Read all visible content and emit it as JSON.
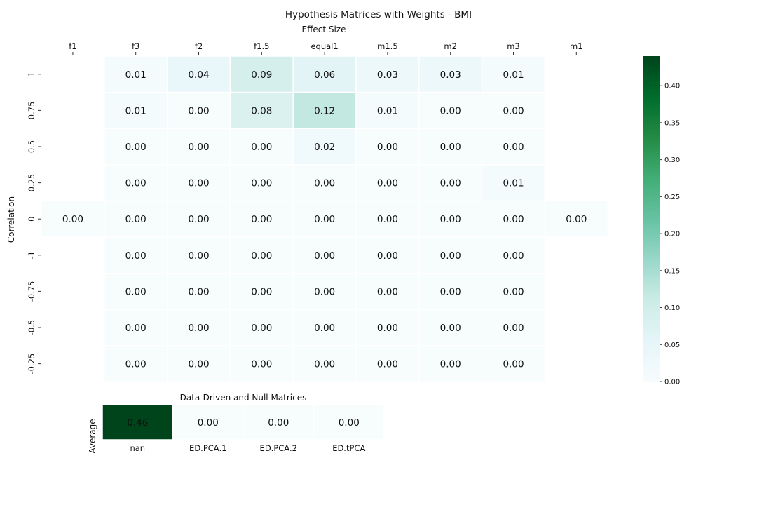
{
  "chart_data": [
    {
      "type": "heatmap",
      "title": "Hypothesis Matrices with Weights - BMI",
      "xlabel": "Effect Size",
      "ylabel": "Correlation",
      "x": [
        "f1",
        "f3",
        "f2",
        "f1.5",
        "equal1",
        "m1.5",
        "m2",
        "m3",
        "m1"
      ],
      "y": [
        "1",
        "0.75",
        "0.5",
        "0.25",
        "0",
        "-1",
        "-0.75",
        "-0.5",
        "-0.25"
      ],
      "values": [
        [
          null,
          0.01,
          0.04,
          0.09,
          0.06,
          0.03,
          0.03,
          0.01,
          null
        ],
        [
          null,
          0.01,
          0.0,
          0.08,
          0.12,
          0.01,
          0.0,
          0.0,
          null
        ],
        [
          null,
          0.0,
          0.0,
          0.0,
          0.02,
          0.0,
          0.0,
          0.0,
          null
        ],
        [
          null,
          0.0,
          0.0,
          0.0,
          0.0,
          0.0,
          0.0,
          0.01,
          null
        ],
        [
          0.0,
          0.0,
          0.0,
          0.0,
          0.0,
          0.0,
          0.0,
          0.0,
          0.0
        ],
        [
          null,
          0.0,
          0.0,
          0.0,
          0.0,
          0.0,
          0.0,
          0.0,
          null
        ],
        [
          null,
          0.0,
          0.0,
          0.0,
          0.0,
          0.0,
          0.0,
          0.0,
          null
        ],
        [
          null,
          0.0,
          0.0,
          0.0,
          0.0,
          0.0,
          0.0,
          0.0,
          null
        ],
        [
          null,
          0.0,
          0.0,
          0.0,
          0.0,
          0.0,
          0.0,
          0.0,
          null
        ]
      ],
      "colormap": "Greens (BuGn)",
      "colorbar": {
        "range": [
          0,
          0.44
        ],
        "ticks": [
          0.0,
          0.05,
          0.1,
          0.15,
          0.2,
          0.25,
          0.3,
          0.35,
          0.4
        ],
        "tick_labels": [
          "0.00",
          "0.05",
          "0.10",
          "0.15",
          "0.20",
          "0.25",
          "0.30",
          "0.35",
          "0.40"
        ]
      },
      "grid": false
    },
    {
      "type": "heatmap",
      "title": "Data-Driven and Null Matrices",
      "ylabel": "Average",
      "x": [
        "nan",
        "ED.PCA.1",
        "ED.PCA.2",
        "ED.tPCA"
      ],
      "values": [
        [
          0.46,
          0.0,
          0.0,
          0.0
        ]
      ]
    }
  ]
}
